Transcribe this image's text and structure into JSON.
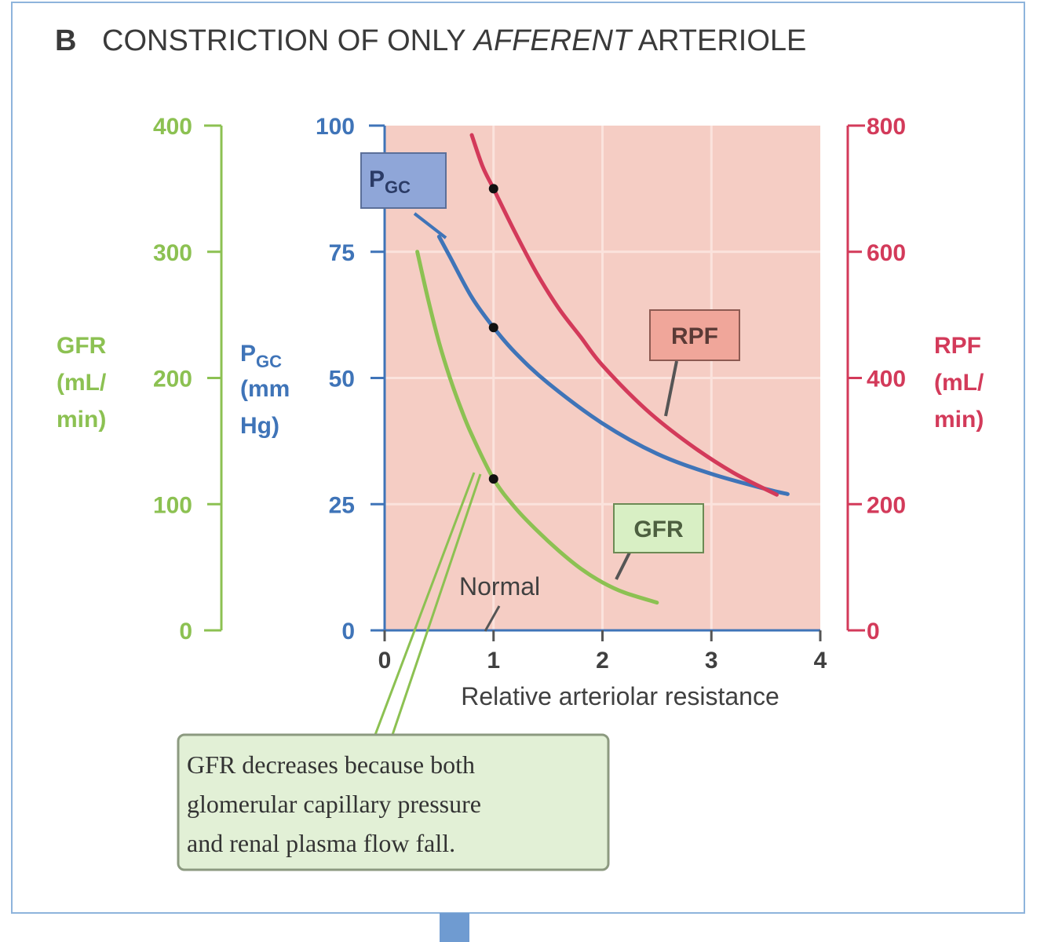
{
  "title": {
    "letter": "B",
    "prefix": "CONSTRICTION OF ONLY ",
    "emphasis": "AFFERENT",
    "suffix": " ARTERIOLE"
  },
  "colors": {
    "gfr": "#8cc152",
    "pgc": "#3f74b8",
    "rpf": "#d33a5a",
    "plot_bg": "#f5cdc4",
    "gfr_box": "#d8efc4",
    "pgc_box": "#8fa6d8",
    "rpf_box": "#f0a69a",
    "callout_box": "#e2f0d6"
  },
  "chart_data": {
    "type": "line",
    "xlabel": "Relative arteriolar resistance",
    "xlim": [
      0,
      4
    ],
    "x_ticks": [
      "0",
      "1",
      "2",
      "3",
      "4"
    ],
    "axes": {
      "gfr": {
        "label_lines": [
          "GFR",
          "(mL/",
          "min)"
        ],
        "ylim": [
          0,
          400
        ],
        "ticks": [
          "0",
          "100",
          "200",
          "300",
          "400"
        ]
      },
      "pgc": {
        "label_main": "P",
        "label_sub": "GC",
        "label_lines": [
          "(mm",
          "Hg)"
        ],
        "ylim": [
          0,
          100
        ],
        "ticks": [
          "0",
          "25",
          "50",
          "75",
          "100"
        ]
      },
      "rpf": {
        "label_lines": [
          "RPF",
          "(mL/",
          "min)"
        ],
        "ylim": [
          0,
          800
        ],
        "ticks": [
          "0",
          "200",
          "400",
          "600",
          "800"
        ]
      }
    },
    "series": [
      {
        "name": "GFR",
        "axis": "gfr",
        "x": [
          0.3,
          0.4,
          0.5,
          0.6,
          0.7,
          0.8,
          1.0,
          1.2,
          1.4,
          1.6,
          1.8,
          2.0,
          2.2,
          2.5
        ],
        "y": [
          300,
          262,
          228,
          200,
          176,
          155,
          120,
          97,
          79,
          63,
          49,
          38,
          30,
          22
        ]
      },
      {
        "name": "P",
        "sub": "GC",
        "axis": "pgc",
        "x": [
          0.5,
          0.6,
          0.8,
          1.0,
          1.2,
          1.5,
          2.0,
          2.5,
          3.0,
          3.5,
          3.7
        ],
        "y": [
          78,
          74,
          66,
          60,
          55,
          49,
          41,
          35,
          31,
          28,
          27
        ]
      },
      {
        "name": "RPF",
        "axis": "rpf",
        "x": [
          0.8,
          0.9,
          1.0,
          1.2,
          1.4,
          1.6,
          1.8,
          2.0,
          2.4,
          2.8,
          3.2,
          3.6
        ],
        "y": [
          785,
          735,
          700,
          630,
          565,
          510,
          465,
          420,
          350,
          295,
          250,
          215
        ]
      }
    ],
    "normal_points": [
      {
        "series": "GFR",
        "x": 1,
        "y": 120
      },
      {
        "series": "P",
        "x": 1,
        "y": 60
      },
      {
        "series": "RPF",
        "x": 1,
        "y": 700
      }
    ],
    "annotations": {
      "normal": "Normal",
      "gfr_label": "GFR",
      "rpf_label": "RPF",
      "pgc_label_main": "P",
      "pgc_label_sub": "GC",
      "callout_lines": [
        "GFR decreases because both",
        "glomerular capillary pressure",
        "and renal plasma flow fall."
      ]
    },
    "grid": true
  }
}
